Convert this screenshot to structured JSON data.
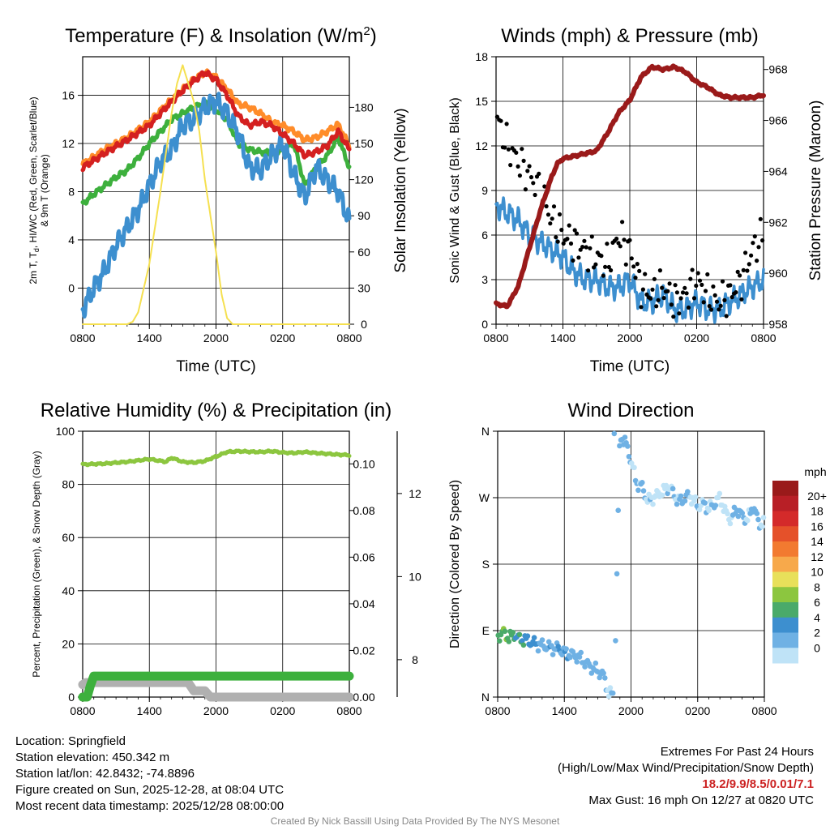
{
  "colors": {
    "red": "#d42020",
    "orange": "#ff8c2a",
    "green": "#3db03d",
    "blue": "#3d8fcf",
    "yellow": "#f5e050",
    "black": "#000000",
    "maroon": "#9a1a1a",
    "rh_green": "#8cc63f",
    "gray": "#b0b0b0"
  },
  "chart_data": [
    {
      "type": "line",
      "id": "temperature",
      "title": "Temperature (F) & Insolation (W/m",
      "title_sup": "2",
      "title_end": ")",
      "xlabel": "Time (UTC)",
      "ylabel_lines": [
        "2m T, T",
        "d",
        ", HI/WC (Red, Green, Scarlet/Blue)",
        "& 9m T (Orange)"
      ],
      "y2label": "Solar Insolation (Yellow)",
      "x_ticks": [
        "0800",
        "1400",
        "2000",
        "0200",
        "0800"
      ],
      "y_ticks": [
        "0",
        "4",
        "8",
        "12",
        "16"
      ],
      "y2_ticks": [
        "0",
        "30",
        "60",
        "90",
        "120",
        "150",
        "180"
      ],
      "xlim": [
        0,
        24
      ],
      "ylim": [
        -3,
        19.2
      ],
      "y2lim": [
        0,
        222
      ],
      "series": [
        {
          "name": "9m T",
          "color": "orange",
          "x": [
            0,
            2,
            4,
            6,
            7.5,
            9,
            10,
            11,
            12,
            13,
            14,
            15,
            16,
            17,
            18,
            19,
            20,
            21,
            22,
            23,
            24
          ],
          "values": [
            10.3,
            11.5,
            12.5,
            13.8,
            15.2,
            16.5,
            17.3,
            17.9,
            17.5,
            16.5,
            15.3,
            15,
            14.5,
            13.8,
            13.5,
            13,
            12.3,
            12.5,
            13,
            13.6,
            11.8
          ]
        },
        {
          "name": "Dew point",
          "color": "green",
          "x": [
            0,
            1,
            2,
            3,
            4,
            5,
            6,
            7,
            8,
            9,
            10,
            11,
            12,
            13,
            14,
            15,
            16,
            17,
            18,
            19,
            20,
            21,
            22,
            23,
            24
          ],
          "values": [
            7,
            7.8,
            8.5,
            9.2,
            9.8,
            10.8,
            12,
            13,
            14,
            14.5,
            15,
            15.3,
            14.8,
            14,
            12,
            11.5,
            11.3,
            11.2,
            11.5,
            12,
            8.5,
            10,
            11,
            12.5,
            10
          ]
        },
        {
          "name": "HI/WC",
          "color": "blue",
          "x": [
            0,
            1,
            2,
            3,
            4,
            5,
            6,
            7,
            8,
            9,
            10,
            11,
            12,
            13,
            14,
            15,
            16,
            17,
            18,
            19,
            20,
            21,
            22,
            23,
            24
          ],
          "values": [
            -1.8,
            0,
            1.5,
            3.5,
            5,
            6.5,
            8.5,
            10.5,
            11.5,
            13.5,
            14,
            15,
            15.5,
            14.5,
            12.8,
            10,
            9.8,
            11,
            12,
            9.5,
            7.5,
            10,
            9,
            8,
            5.5
          ]
        },
        {
          "name": "2m T",
          "color": "red",
          "x": [
            0,
            2,
            4,
            6,
            7.5,
            9,
            10,
            11,
            12,
            13,
            14,
            15,
            16,
            17,
            18,
            19,
            20,
            21,
            22,
            23,
            24
          ],
          "values": [
            10,
            11.2,
            12.3,
            13.5,
            15,
            16.4,
            17.2,
            17.9,
            17.3,
            16,
            14.3,
            13.5,
            13.8,
            13.5,
            12.8,
            12,
            11,
            11.3,
            11.8,
            13,
            11.5
          ]
        },
        {
          "name": "Solar Insolation",
          "color": "yellow",
          "axis": "y2",
          "x": [
            0,
            3,
            4,
            4.5,
            5,
            6,
            7,
            8,
            8.5,
            9,
            9.5,
            10,
            10.5,
            11,
            12,
            12.5,
            13,
            13.5,
            14,
            24
          ],
          "values": [
            0,
            0,
            0,
            2,
            10,
            50,
            110,
            175,
            200,
            215,
            200,
            185,
            160,
            120,
            60,
            25,
            5,
            0,
            0,
            0
          ]
        }
      ]
    },
    {
      "type": "scatter",
      "id": "winds",
      "title": "Winds (mph) & Pressure (mb)",
      "xlabel": "Time (UTC)",
      "ylabel": "Sonic Wind & Gust (Blue, Black)",
      "y2label": "Station Pressure (Maroon)",
      "x_ticks": [
        "0800",
        "1400",
        "2000",
        "0200",
        "0800"
      ],
      "y_ticks": [
        "0",
        "3",
        "6",
        "9",
        "12",
        "15",
        "18"
      ],
      "y2_ticks": [
        "958",
        "960",
        "962",
        "964",
        "966",
        "968"
      ],
      "xlim": [
        0,
        24
      ],
      "ylim": [
        0,
        18
      ],
      "y2lim": [
        958,
        968.5
      ],
      "series": [
        {
          "name": "Gust",
          "color": "black",
          "x": [
            0,
            1,
            2,
            3,
            4,
            5,
            6,
            7,
            8,
            9,
            10,
            11,
            12,
            13,
            14,
            15,
            16,
            17,
            18,
            19,
            20,
            21,
            22,
            23,
            24
          ],
          "values": [
            14,
            12,
            11,
            10,
            9,
            7,
            6,
            5.5,
            5,
            4.5,
            4,
            6,
            5,
            2.5,
            2,
            2.5,
            1.5,
            2,
            3,
            2,
            1.5,
            2,
            3,
            5,
            6
          ]
        },
        {
          "name": "Sonic Wind",
          "color": "blue",
          "x": [
            0,
            1,
            2,
            3,
            4,
            5,
            6,
            7,
            8,
            9,
            10,
            11,
            12,
            13,
            14,
            15,
            16,
            17,
            18,
            19,
            20,
            21,
            22,
            23,
            24
          ],
          "values": [
            8,
            7.5,
            7,
            6,
            5.5,
            5,
            4.5,
            3.5,
            3,
            3,
            2.5,
            2.5,
            3,
            1.5,
            1.5,
            2,
            1,
            1,
            1.5,
            1,
            1,
            1.5,
            2,
            2.5,
            3
          ]
        },
        {
          "name": "Station Pressure",
          "color": "maroon",
          "axis": "y2",
          "x": [
            0,
            1,
            2,
            3,
            4,
            5,
            5.5,
            6,
            7,
            8,
            9,
            10,
            11,
            12,
            13,
            14,
            15,
            16,
            17,
            18,
            19,
            20,
            21,
            22,
            23,
            24
          ],
          "values": [
            958.8,
            958.7,
            959.5,
            961,
            962.5,
            963.8,
            964.3,
            964.5,
            964.6,
            964.7,
            964.8,
            965.5,
            966.3,
            966.8,
            967.7,
            968.1,
            968,
            968.1,
            967.9,
            967.5,
            967.3,
            967,
            966.9,
            966.9,
            966.9,
            967
          ]
        }
      ]
    },
    {
      "type": "line",
      "id": "humidity",
      "title": "Relative Humidity (%) & Precipitation (in)",
      "ylabel": "Percent, Precipitation (Green), & Snow Depth (Gray)",
      "x_ticks": [
        "0800",
        "1400",
        "2000",
        "0200",
        "0800"
      ],
      "y_ticks": [
        "0",
        "20",
        "40",
        "60",
        "80",
        "100"
      ],
      "y2_ticks": [
        "0.00",
        "0.02",
        "0.04",
        "0.06",
        "0.08",
        "0.10"
      ],
      "y3_ticks": [
        "8",
        "10",
        "12"
      ],
      "xlim": [
        0,
        24
      ],
      "ylim": [
        0,
        100
      ],
      "y2lim": [
        0,
        0.114
      ],
      "y3lim": [
        7.1,
        13.5
      ],
      "series": [
        {
          "name": "Relative Humidity",
          "color": "rh_green",
          "x": [
            0,
            2,
            4,
            6,
            7.5,
            8,
            9,
            10,
            11,
            12,
            13,
            14,
            15,
            16,
            17,
            18,
            19,
            20,
            21,
            22,
            23,
            24
          ],
          "values": [
            87.5,
            87.8,
            88.5,
            89.5,
            88.5,
            90,
            88.5,
            88.2,
            88.8,
            90.5,
            92.2,
            92.5,
            92.3,
            92.2,
            92.5,
            92,
            91.8,
            92.2,
            91.8,
            91.5,
            91.2,
            91
          ]
        },
        {
          "name": "Snow Depth",
          "color": "gray",
          "axis": "y3",
          "x": [
            0,
            0.3,
            1,
            9.5,
            10,
            11,
            11.5,
            24
          ],
          "values": [
            7.4,
            7.45,
            7.45,
            7.45,
            7.25,
            7.25,
            7.1,
            7.1
          ]
        },
        {
          "name": "Precipitation",
          "color": "green",
          "axis": "y2",
          "x": [
            0,
            0.4,
            0.7,
            1,
            24
          ],
          "values": [
            0,
            0,
            0.005,
            0.009,
            0.009
          ]
        }
      ]
    },
    {
      "type": "scatter",
      "id": "direction",
      "title": "Wind Direction",
      "ylabel": "Direction (Colored By Speed)",
      "x_ticks": [
        "0800",
        "1400",
        "2000",
        "0200",
        "0800"
      ],
      "y_ticks": [
        "N",
        "E",
        "S",
        "W",
        "N"
      ],
      "xlim": [
        0,
        24
      ],
      "ylim": [
        0,
        360
      ],
      "colorbar": {
        "title": "mph",
        "labels": [
          "20+",
          "18",
          "16",
          "14",
          "12",
          "10",
          "8",
          "6",
          "4",
          "2",
          "0"
        ],
        "colors": [
          "#9a1a1a",
          "#b81f26",
          "#d42a2a",
          "#e5512a",
          "#f27a30",
          "#f7a94b",
          "#e8e05a",
          "#8cc63f",
          "#4aaa6a",
          "#3d8fcf",
          "#6fb1e4",
          "#bfe3f7"
        ]
      },
      "series": [
        {
          "name": "Direction",
          "x": [
            0,
            0.5,
            1,
            1.5,
            2,
            2.5,
            3,
            3.5,
            4,
            4.5,
            5,
            5.5,
            6,
            6.5,
            7,
            7.5,
            8,
            8.5,
            9,
            9.5,
            10,
            10.5,
            11,
            11.5,
            12,
            12.5,
            13,
            13.5,
            14,
            14.5,
            15,
            15.5,
            16,
            16.5,
            17,
            17.5,
            18,
            18.5,
            19,
            19.5,
            20,
            20.5,
            21,
            21.5,
            22,
            22.5,
            23,
            23.5
          ],
          "values": [
            82,
            88,
            80,
            85,
            78,
            78,
            74,
            72,
            70,
            68,
            66,
            66,
            60,
            58,
            56,
            52,
            45,
            40,
            35,
            30,
            5,
            3,
            355,
            345,
            320,
            290,
            285,
            265,
            270,
            275,
            280,
            285,
            270,
            265,
            272,
            270,
            258,
            262,
            255,
            262,
            270,
            250,
            240,
            255,
            245,
            240,
            260,
            235
          ],
          "speeds": [
            7,
            8,
            7,
            6,
            6,
            6,
            5,
            4,
            3,
            4,
            3,
            4,
            4,
            3,
            3,
            3,
            3,
            3,
            2,
            3,
            2,
            3,
            3,
            3,
            2,
            2,
            3,
            2,
            1,
            1,
            1,
            2,
            2,
            2,
            3,
            1,
            2,
            2,
            2,
            3,
            1,
            1,
            2,
            3,
            3,
            2,
            3,
            2
          ]
        }
      ]
    }
  ],
  "info": {
    "location": "Location: Springfield",
    "elevation": "Station elevation: 450.342 m",
    "latlon": "Station lat/lon: 42.8432; -74.8896",
    "created": "Figure created on Sun, 2025-12-28, at 08:04 UTC",
    "recent": "Most recent data timestamp: 2025/12/28 08:00:00"
  },
  "extremes": {
    "title": "Extremes For Past 24 Hours",
    "subtitle": "(High/Low/Max Wind/Precipitation/Snow Depth)",
    "values": "18.2/9.9/8.5/0.01/7.1",
    "max_gust": "Max Gust: 16 mph On 12/27 at 0820 UTC"
  },
  "credit": "Created By Nick Bassill Using Data Provided By The NYS Mesonet"
}
